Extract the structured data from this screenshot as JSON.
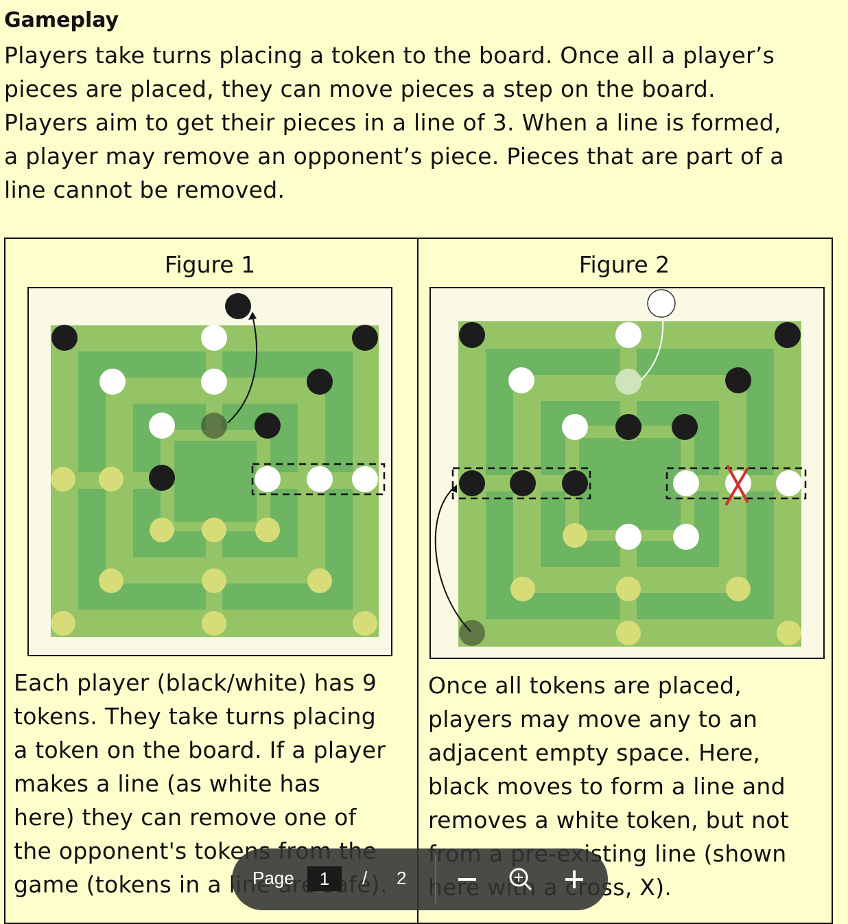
{
  "section": {
    "heading": "Gameplay",
    "paragraph_lines": [
      "Players take turns placing a token to the board. Once all a player’s",
      "pieces are placed, they can move pieces a step on the board.",
      "Players aim to get their pieces in a line of 3. When a line is formed,",
      "a player may remove an opponent’s piece. Pieces that are part of a",
      "line cannot be removed."
    ]
  },
  "figures": [
    {
      "title": "Figure 1",
      "caption_lines": [
        "Each player (black/white) has 9",
        "tokens. They take turns placing",
        "a token on the board. If a player",
        "makes a line (as white has",
        "here) they can remove one of",
        "the opponent's tokens from the",
        "game (tokens in a line are safe)."
      ]
    },
    {
      "title": "Figure 2",
      "caption_lines": [
        "Once all tokens are placed,",
        "players may move any to an",
        "adjacent empty space. Here,",
        "black moves to form a line and",
        "removes a white token, but not",
        "from a pre-existing line (shown",
        "here with a cross, X)."
      ]
    }
  ],
  "toolbar": {
    "page_label": "Page",
    "current_page": "1",
    "separator": "/",
    "total_pages": "2",
    "zoom_out_icon": "minus-icon",
    "zoom_icon": "magnifier-plus-icon",
    "zoom_in_icon": "plus-icon"
  },
  "colors": {
    "background": "#fefecd",
    "board_outer": "#95c467",
    "board_inner": "#6db463",
    "empty_point": "#d6dd78",
    "black_token": "#1c1c1c",
    "white_token": "#ffffff",
    "cross": "#d0302e"
  }
}
